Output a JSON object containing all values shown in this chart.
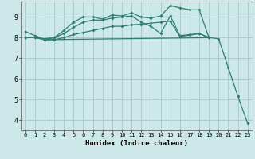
{
  "title": "",
  "xlabel": "Humidex (Indice chaleur)",
  "ylabel": "",
  "bg_color": "#cce8e8",
  "grid_color": "#aacccc",
  "line_color": "#2a7f6f",
  "xlim": [
    -0.5,
    23.5
  ],
  "ylim": [
    3.5,
    9.75
  ],
  "xticks": [
    0,
    1,
    2,
    3,
    4,
    5,
    6,
    7,
    8,
    9,
    10,
    11,
    12,
    13,
    14,
    15,
    16,
    17,
    18,
    19,
    20,
    21,
    22,
    23
  ],
  "yticks": [
    4,
    5,
    6,
    7,
    8,
    9
  ],
  "series": [
    {
      "x": [
        0,
        1,
        2,
        3,
        4,
        5,
        6,
        7,
        8,
        9,
        10,
        11,
        12,
        13,
        14,
        15,
        16,
        17,
        18,
        19,
        20,
        21,
        22,
        23
      ],
      "y": [
        8.3,
        8.1,
        7.9,
        7.9,
        8.0,
        8.15,
        8.25,
        8.35,
        8.45,
        8.55,
        8.55,
        8.62,
        8.65,
        8.7,
        8.75,
        8.8,
        8.05,
        8.12,
        8.2,
        8.0,
        7.95,
        6.55,
        5.15,
        3.85
      ],
      "markers": true
    },
    {
      "x": [
        0,
        1,
        2,
        3,
        4,
        5,
        6,
        7,
        8,
        9,
        10,
        11,
        12,
        13,
        14,
        15,
        16,
        17,
        18,
        19
      ],
      "y": [
        8.0,
        8.0,
        7.9,
        8.0,
        8.35,
        8.75,
        9.0,
        9.0,
        8.9,
        9.1,
        9.05,
        9.2,
        9.0,
        8.95,
        9.05,
        9.55,
        9.45,
        9.35,
        9.35,
        8.0
      ],
      "markers": true
    },
    {
      "x": [
        0,
        1,
        2,
        3,
        4,
        5,
        6,
        7,
        8,
        9,
        10,
        11,
        12,
        13,
        14,
        15,
        16,
        17,
        18,
        19
      ],
      "y": [
        8.0,
        8.0,
        7.95,
        8.0,
        8.2,
        8.5,
        8.75,
        8.85,
        8.85,
        8.95,
        9.0,
        9.05,
        8.75,
        8.55,
        8.2,
        9.05,
        8.1,
        8.15,
        8.2,
        8.0
      ],
      "markers": true
    },
    {
      "x": [
        2,
        19
      ],
      "y": [
        7.9,
        8.0
      ],
      "markers": false
    }
  ]
}
